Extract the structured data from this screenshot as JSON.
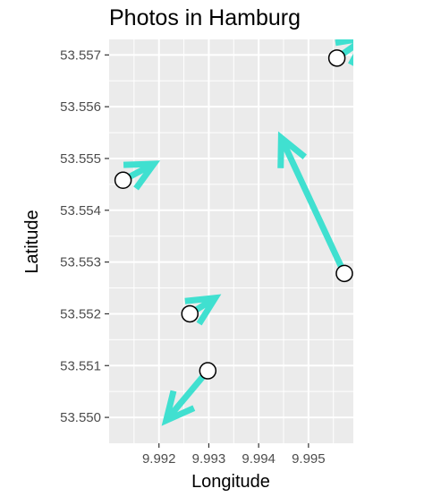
{
  "chart_data": {
    "type": "scatter",
    "title": "Photos in Hamburg",
    "xlabel": "Longitude",
    "ylabel": "Latitude",
    "xlim": [
      9.991,
      9.9959
    ],
    "ylim": [
      53.5495,
      53.5573
    ],
    "x_ticks": [
      9.992,
      9.993,
      9.994,
      9.995
    ],
    "x_tick_labels": [
      "9.992",
      "9.993",
      "9.994",
      "9.995"
    ],
    "y_ticks": [
      53.55,
      53.551,
      53.552,
      53.553,
      53.554,
      53.555,
      53.556,
      53.557
    ],
    "y_tick_labels": [
      "53.550",
      "53.551",
      "53.552",
      "53.553",
      "53.554",
      "53.555",
      "53.556",
      "53.557"
    ],
    "grid": true,
    "panel_background": "#ebebeb",
    "arrow_color": "#40e0d0",
    "point_fill": "#ffffff",
    "point_stroke": "#000000",
    "photos": [
      {
        "lon": 9.99128,
        "lat": 53.55458,
        "heading_deg": 62,
        "arrow_len": 0.0007
      },
      {
        "lon": 9.99262,
        "lat": 53.552,
        "heading_deg": 58,
        "arrow_len": 0.0006
      },
      {
        "lon": 9.99298,
        "lat": 53.5509,
        "heading_deg": 220,
        "arrow_len": 0.0013
      },
      {
        "lon": 9.99572,
        "lat": 53.55278,
        "heading_deg": 335,
        "arrow_len": 0.003
      },
      {
        "lon": 9.99557,
        "lat": 53.55694,
        "heading_deg": 55,
        "arrow_len": 0.0007
      }
    ]
  }
}
